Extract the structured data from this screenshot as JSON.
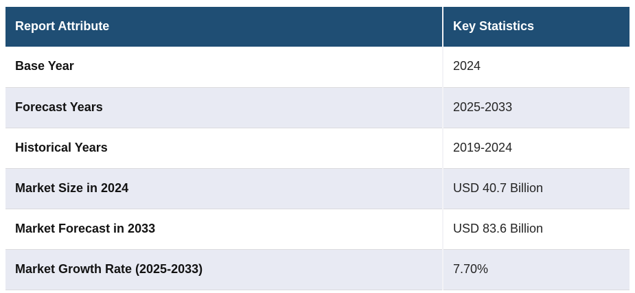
{
  "table": {
    "columns": [
      {
        "label": "Report Attribute"
      },
      {
        "label": "Key Statistics"
      }
    ],
    "rows": [
      {
        "attribute": "Base Year",
        "value": "2024"
      },
      {
        "attribute": "Forecast Years",
        "value": "2025-2033"
      },
      {
        "attribute": "Historical Years",
        "value": "2019-2024"
      },
      {
        "attribute": "Market Size in 2024",
        "value": "USD 40.7 Billion"
      },
      {
        "attribute": "Market Forecast in 2033",
        "value": "USD 83.6 Billion"
      },
      {
        "attribute": "Market Growth Rate (2025-2033)",
        "value": "7.70%"
      }
    ],
    "colors": {
      "header_bg": "#1F4E74",
      "header_text": "#FFFFFF",
      "row_stripe_bg": "#E8EAF3",
      "row_white_bg": "#FFFFFF",
      "row_border": "#DBDBDE",
      "column_separator": "#F3F3F6",
      "attribute_text": "#121212",
      "value_text": "#242424"
    }
  }
}
